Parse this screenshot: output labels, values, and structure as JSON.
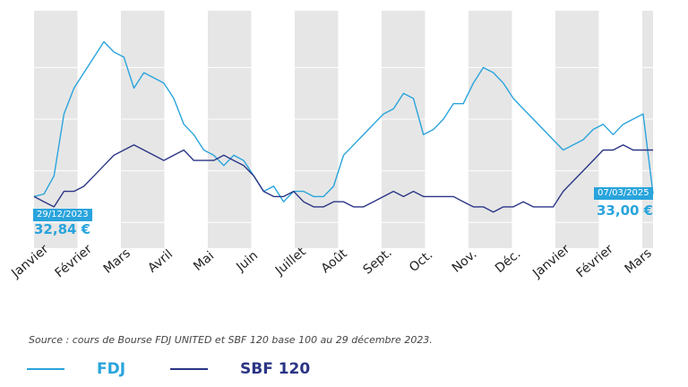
{
  "colors": {
    "fdj": "#29a4dc",
    "sbf": "#2b3585",
    "band": "#e6e6e6",
    "grid": "#ffffff"
  },
  "source_text": "Source : cours de Bourse FDJ UNITED et SBF 120 base 100 au 29 décembre 2023.",
  "start_annotation": {
    "date": "29/12/2023",
    "value": "32,84 €"
  },
  "end_annotation": {
    "date": "07/03/2025",
    "value": "33,00 €"
  },
  "chart_data": {
    "type": "line",
    "title": "",
    "xlabel": "",
    "ylabel": "",
    "x": [
      "29/12/2023",
      "2024-01-05",
      "2024-01-12",
      "2024-01-19",
      "2024-01-26",
      "2024-02-02",
      "2024-02-09",
      "2024-02-16",
      "2024-02-23",
      "2024-03-01",
      "2024-03-08",
      "2024-03-15",
      "2024-03-22",
      "2024-03-29",
      "2024-04-05",
      "2024-04-12",
      "2024-04-19",
      "2024-04-26",
      "2024-05-03",
      "2024-05-10",
      "2024-05-17",
      "2024-05-24",
      "2024-05-31",
      "2024-06-07",
      "2024-06-14",
      "2024-06-21",
      "2024-06-28",
      "2024-07-05",
      "2024-07-12",
      "2024-07-19",
      "2024-07-26",
      "2024-08-02",
      "2024-08-09",
      "2024-08-16",
      "2024-08-23",
      "2024-08-30",
      "2024-09-06",
      "2024-09-13",
      "2024-09-20",
      "2024-09-27",
      "2024-10-04",
      "2024-10-11",
      "2024-10-18",
      "2024-10-25",
      "2024-11-01",
      "2024-11-08",
      "2024-11-15",
      "2024-11-22",
      "2024-11-29",
      "2024-12-06",
      "2024-12-13",
      "2024-12-20",
      "2024-12-27",
      "2025-01-03",
      "2025-01-10",
      "2025-01-17",
      "2025-01-24",
      "2025-01-31",
      "2025-02-07",
      "2025-02-14",
      "2025-02-21",
      "2025-02-28",
      "07/03/2025"
    ],
    "month_labels": [
      "Janvier",
      "Février",
      "Mars",
      "Avril",
      "Mai",
      "Juin",
      "Juillet",
      "Août",
      "Sept.",
      "Oct.",
      "Nov.",
      "Déc.",
      "Janvier",
      "Février",
      "Mars"
    ],
    "series": [
      {
        "name": "FDJ",
        "values": [
          100.0,
          100.5,
          104,
          116,
          121,
          124,
          127,
          130,
          128,
          127,
          121,
          124,
          123,
          122,
          119,
          114,
          112,
          109,
          108,
          106,
          108,
          107,
          104,
          101,
          102,
          99,
          101,
          101,
          100,
          100,
          102,
          108,
          110,
          112,
          114,
          116,
          117,
          120,
          119,
          112,
          113,
          115,
          118,
          118,
          122,
          125,
          124,
          122,
          119,
          117,
          115,
          113,
          111,
          109,
          110,
          111,
          113,
          114,
          112,
          114,
          115,
          116,
          100.5
        ]
      },
      {
        "name": "SBF 120",
        "values": [
          100.0,
          99,
          98,
          101,
          101,
          102,
          104,
          106,
          108,
          109,
          110,
          109,
          108,
          107,
          108,
          109,
          107,
          107,
          107,
          108,
          107,
          106,
          104,
          101,
          100,
          100,
          101,
          99,
          98,
          98,
          99,
          99,
          98,
          98,
          99,
          100,
          101,
          100,
          101,
          100,
          100,
          100,
          100,
          99,
          98,
          98,
          97,
          98,
          98,
          99,
          98,
          98,
          98,
          101,
          103,
          105,
          107,
          109,
          109,
          110,
          109,
          109,
          109
        ]
      }
    ],
    "ylim": [
      90,
      136
    ],
    "grid": "horizontal",
    "legend_position": "bottom-left"
  }
}
